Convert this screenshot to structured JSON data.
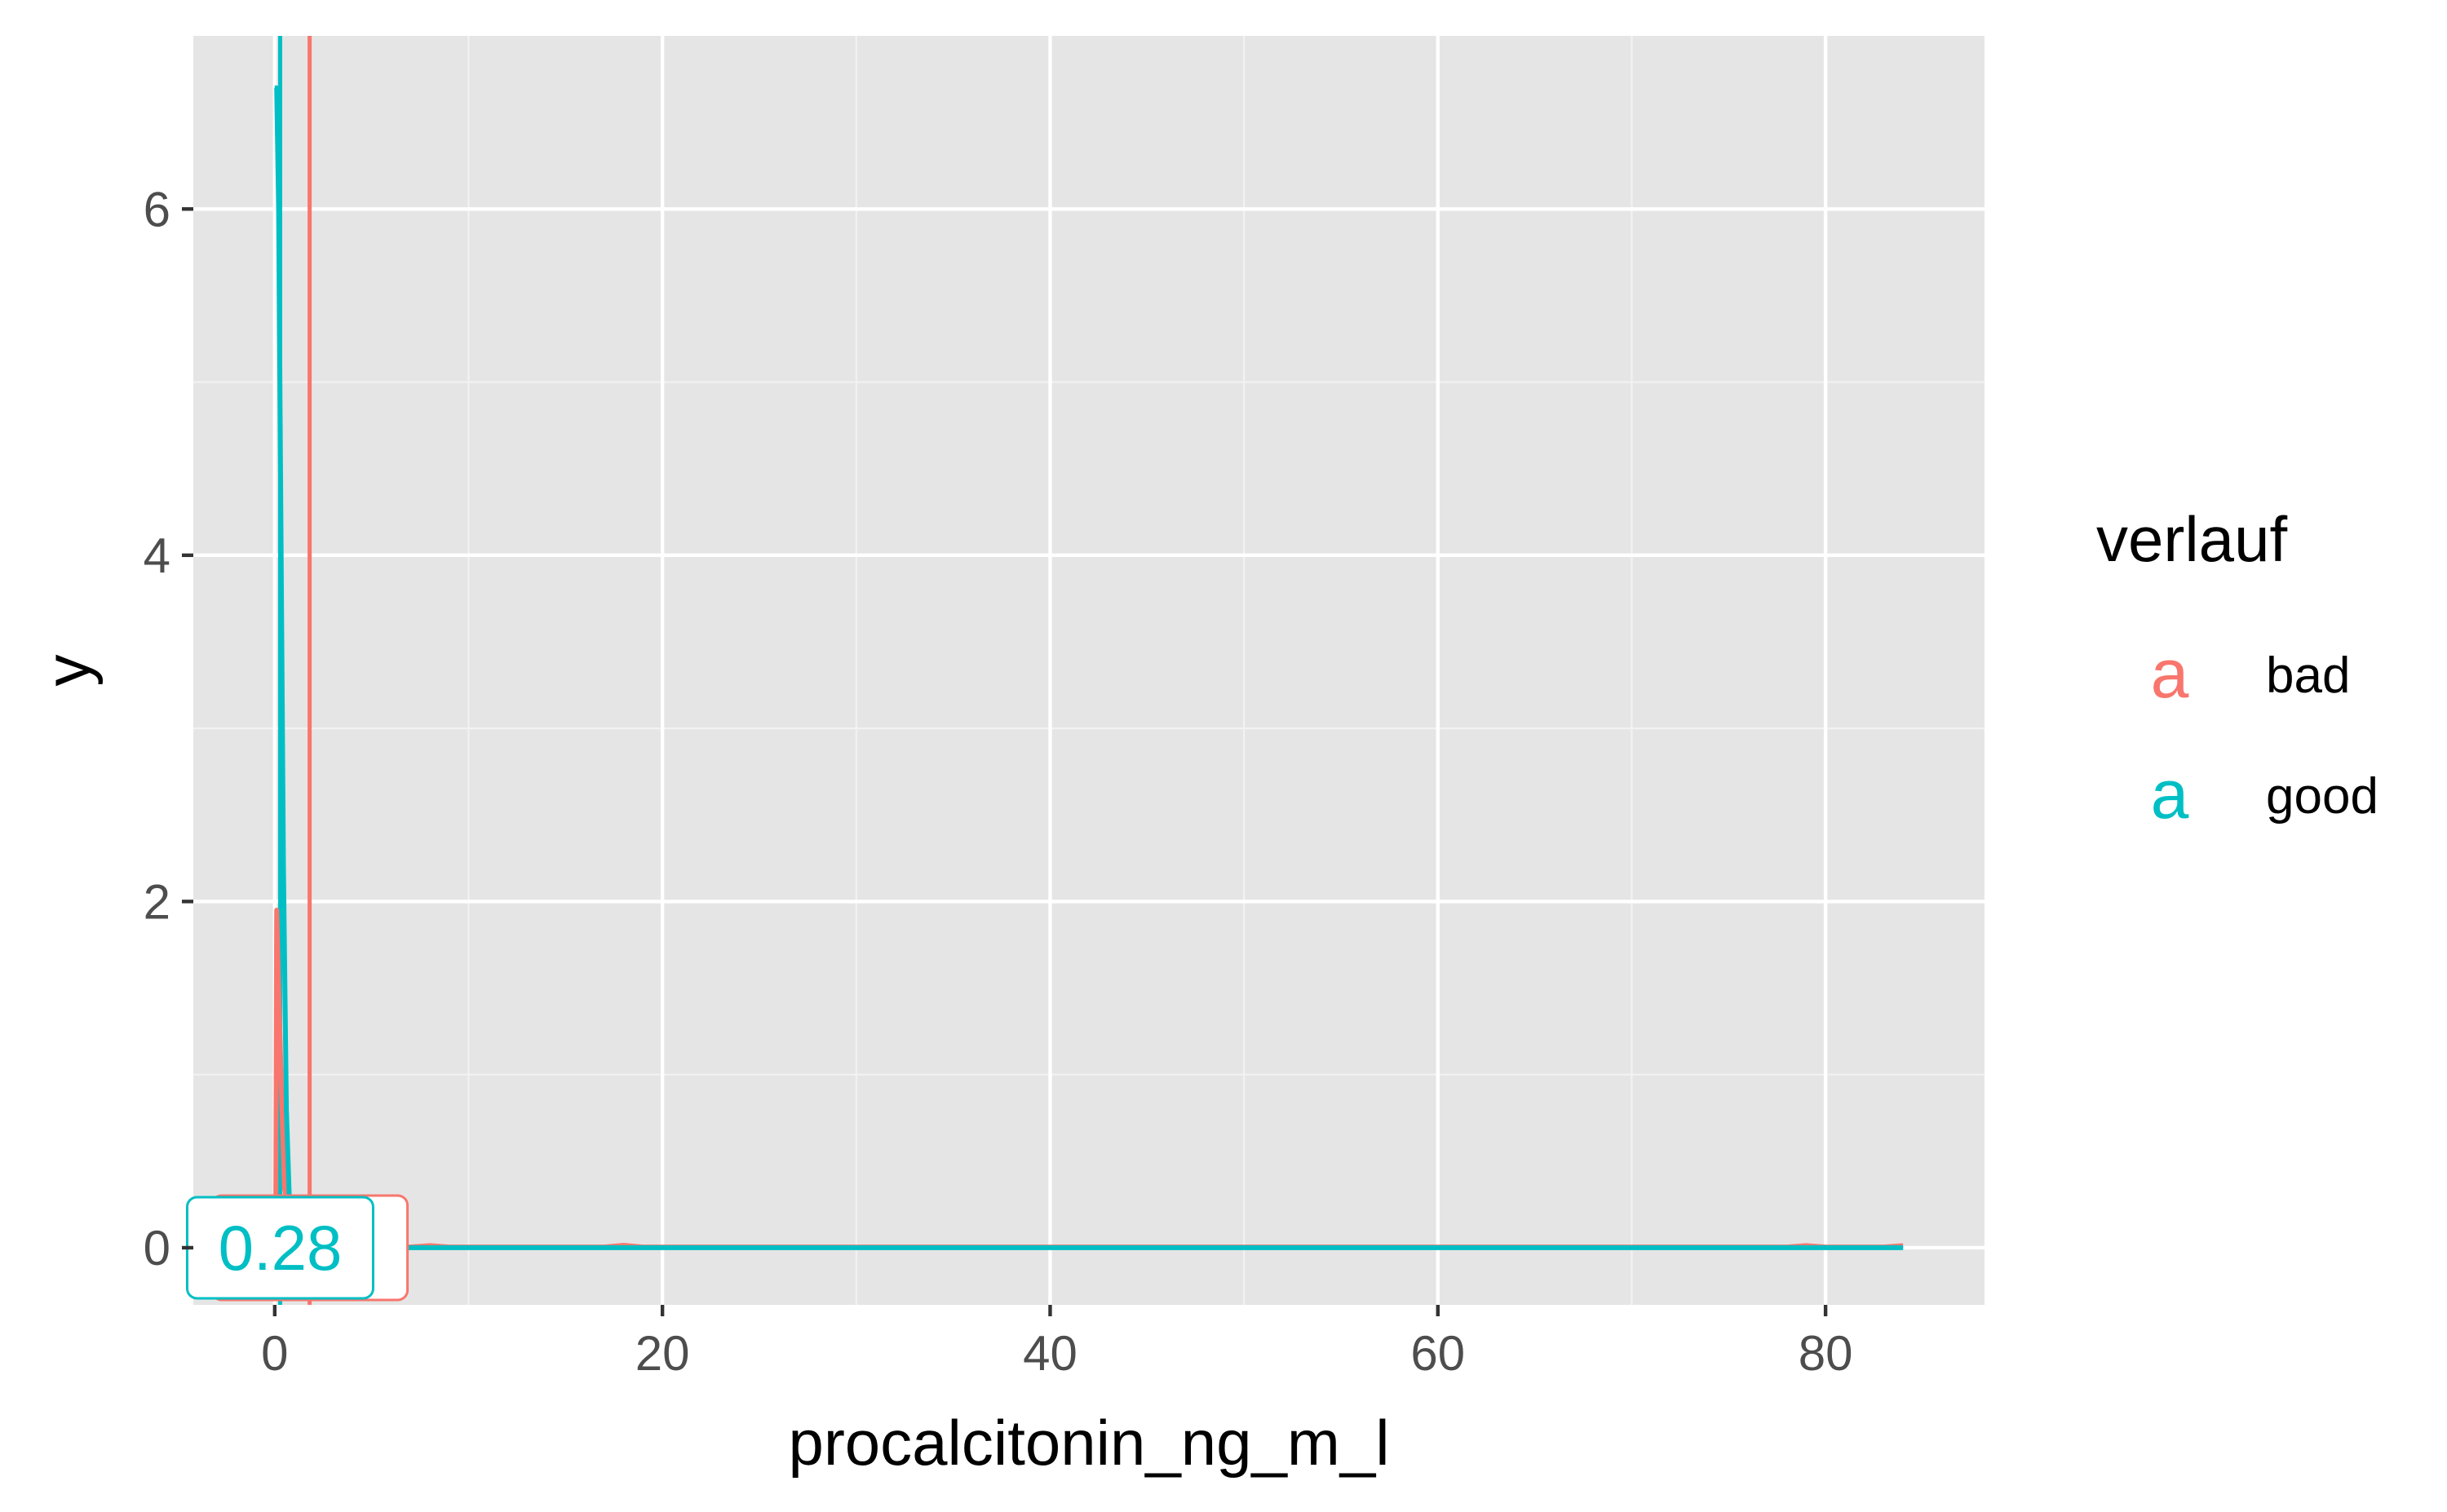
{
  "chart_data": {
    "type": "line",
    "subtype": "density",
    "title": "",
    "xlabel": "procalcitonin_ng_m_l",
    "ylabel": "y",
    "xlim": [
      -4.2,
      88.2
    ],
    "ylim": [
      -0.33,
      7.0
    ],
    "x_ticks": [
      0,
      20,
      40,
      60,
      80
    ],
    "y_ticks": [
      0,
      2,
      4,
      6
    ],
    "x_minor_ticks": [
      10,
      30,
      50,
      70
    ],
    "y_minor_ticks": [
      1,
      3,
      5
    ],
    "grid": true,
    "legend": {
      "title": "verlauf",
      "position": "right"
    },
    "series": [
      {
        "name": "bad",
        "color": "#F8766D",
        "points": [
          [
            0.05,
            0
          ],
          [
            0.1,
            1.95
          ],
          [
            0.2,
            1.5
          ],
          [
            0.35,
            0.9
          ],
          [
            0.5,
            0.35
          ],
          [
            0.8,
            0.12
          ],
          [
            1.2,
            0.03
          ],
          [
            2,
            0.01
          ],
          [
            4,
            0.005
          ],
          [
            7,
            0.004
          ],
          [
            8,
            0.012
          ],
          [
            9,
            0.004
          ],
          [
            17,
            0.004
          ],
          [
            18,
            0.014
          ],
          [
            19,
            0.004
          ],
          [
            78,
            0.004
          ],
          [
            79,
            0.012
          ],
          [
            80,
            0.004
          ],
          [
            83,
            0.004
          ],
          [
            84,
            0.012
          ]
        ]
      },
      {
        "name": "good",
        "color": "#00BFC4",
        "points": [
          [
            0.0,
            6.7
          ],
          [
            0.1,
            6.7
          ],
          [
            0.2,
            6.0
          ],
          [
            0.3,
            4.5
          ],
          [
            0.45,
            2.2
          ],
          [
            0.6,
            0.8
          ],
          [
            0.75,
            0.3
          ],
          [
            0.9,
            0.08
          ],
          [
            1.1,
            0.02
          ],
          [
            1.5,
            0.0
          ],
          [
            84,
            0.0
          ]
        ]
      }
    ],
    "vlines": [
      {
        "series": "bad",
        "x": 1.8,
        "color": "#F8766D"
      },
      {
        "series": "good",
        "x": 0.28,
        "color": "#00BFC4"
      }
    ],
    "labels": [
      {
        "series": "bad",
        "x": 1.8,
        "y": 0,
        "text": "1.8",
        "color": "#F8766D"
      },
      {
        "series": "good",
        "x": 0.28,
        "y": 0,
        "text": "0.28",
        "color": "#00BFC4"
      }
    ]
  }
}
